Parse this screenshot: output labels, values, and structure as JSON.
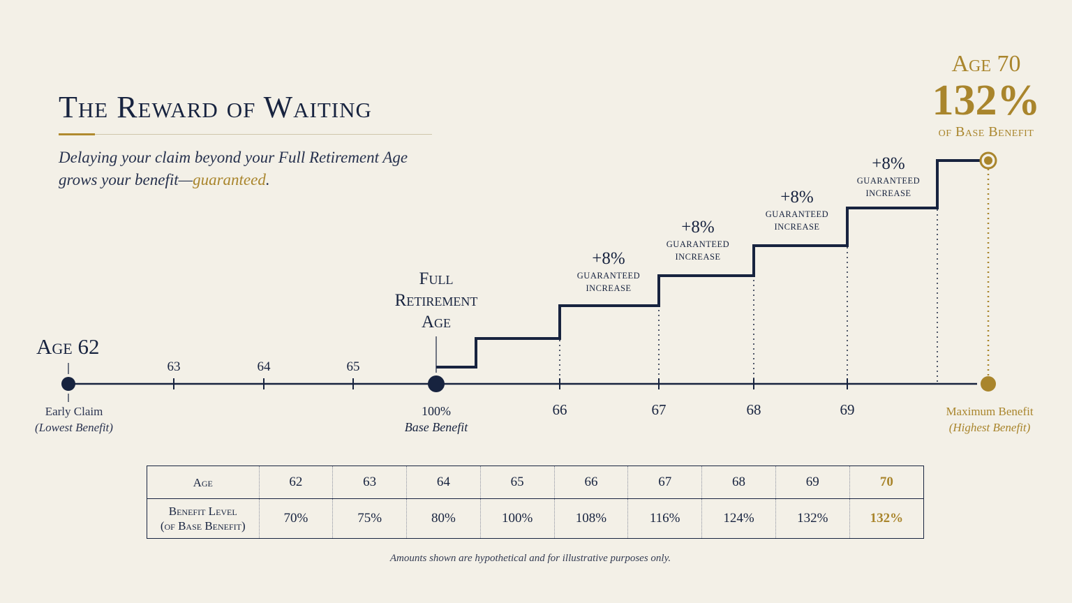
{
  "title": "The Reward of Waiting",
  "subtitle": {
    "before": "Delaying your claim beyond your Full Retirement Age grows your benefit—",
    "highlight": "guaranteed",
    "after": "."
  },
  "callout": {
    "age": "Age 70",
    "percent": "132%",
    "label": "of Base Benefit"
  },
  "colors": {
    "navy": "#17233f",
    "gold": "#a9852c",
    "background": "#f3f0e7"
  },
  "chart_data": {
    "type": "line",
    "x": [
      65.7,
      66,
      67,
      68,
      69,
      70
    ],
    "y": [
      100,
      108,
      116,
      124,
      132,
      132
    ],
    "step": true,
    "timeline_ages": [
      62,
      63,
      64,
      65,
      66,
      67,
      68,
      69,
      70
    ],
    "start_label": {
      "age": "Age 62",
      "line1": "Early Claim",
      "line2": "(Lowest Benefit)"
    },
    "fra_label": {
      "lines": [
        "Full",
        "Retirement",
        "Age"
      ],
      "value": "100%",
      "sub": "Base Benefit"
    },
    "end_label": {
      "line1": "Maximum Benefit",
      "line2": "(Highest Benefit)"
    },
    "tick_labels": [
      "63",
      "64",
      "65",
      "66",
      "67",
      "68",
      "69"
    ],
    "increase_labels": [
      {
        "pct": "+8%",
        "line1": "GUARANTEED",
        "line2": "INCREASE"
      },
      {
        "pct": "+8%",
        "line1": "GUARANTEED",
        "line2": "INCREASE"
      },
      {
        "pct": "+8%",
        "line1": "GUARANTEED",
        "line2": "INCREASE"
      },
      {
        "pct": "+8%",
        "line1": "GUARANTEED",
        "line2": "INCREASE"
      }
    ]
  },
  "table": {
    "row1_header": "Age",
    "row2_header_line1": "Benefit Level",
    "row2_header_line2": "(of Base Benefit)",
    "ages": [
      "62",
      "63",
      "64",
      "65",
      "66",
      "67",
      "68",
      "69",
      "70"
    ],
    "levels": [
      "70%",
      "75%",
      "80%",
      "100%",
      "108%",
      "116%",
      "124%",
      "132%",
      "132%"
    ]
  },
  "footnote": "Amounts shown are hypothetical and for illustrative purposes only."
}
